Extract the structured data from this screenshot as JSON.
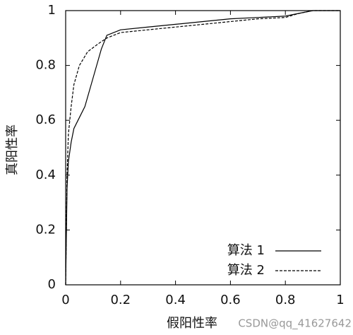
{
  "chart_data": {
    "type": "line",
    "xlabel": "假阳性率",
    "ylabel": "真阳性率",
    "watermark": "CSDN@qq_41627642",
    "xlim": [
      0,
      1
    ],
    "ylim": [
      0,
      1
    ],
    "xticks": [
      0,
      0.2,
      0.4,
      0.6,
      0.8,
      1
    ],
    "yticks": [
      0,
      0.2,
      0.4,
      0.6,
      0.8,
      1
    ],
    "legend": "lower right",
    "series": [
      {
        "name": "算法 1",
        "color": "#000000",
        "linestyle": "solid",
        "x": [
          0,
          0.005,
          0.01,
          0.02,
          0.03,
          0.05,
          0.07,
          0.09,
          0.11,
          0.13,
          0.15,
          0.2,
          0.3,
          0.4,
          0.5,
          0.6,
          0.7,
          0.8,
          0.85,
          0.9,
          1
        ],
        "values": [
          0,
          0.35,
          0.45,
          0.52,
          0.57,
          0.61,
          0.65,
          0.72,
          0.79,
          0.86,
          0.91,
          0.93,
          0.94,
          0.95,
          0.96,
          0.97,
          0.975,
          0.98,
          0.99,
          1,
          1
        ]
      },
      {
        "name": "算法 2",
        "color": "#000000",
        "linestyle": "dashed",
        "x": [
          0,
          0.005,
          0.01,
          0.02,
          0.03,
          0.05,
          0.08,
          0.12,
          0.15,
          0.2,
          0.3,
          0.4,
          0.5,
          0.6,
          0.7,
          0.8,
          0.85,
          0.9,
          1
        ],
        "values": [
          0,
          0.4,
          0.55,
          0.65,
          0.73,
          0.8,
          0.85,
          0.88,
          0.9,
          0.92,
          0.93,
          0.94,
          0.95,
          0.96,
          0.97,
          0.975,
          0.99,
          1,
          1
        ]
      }
    ]
  }
}
